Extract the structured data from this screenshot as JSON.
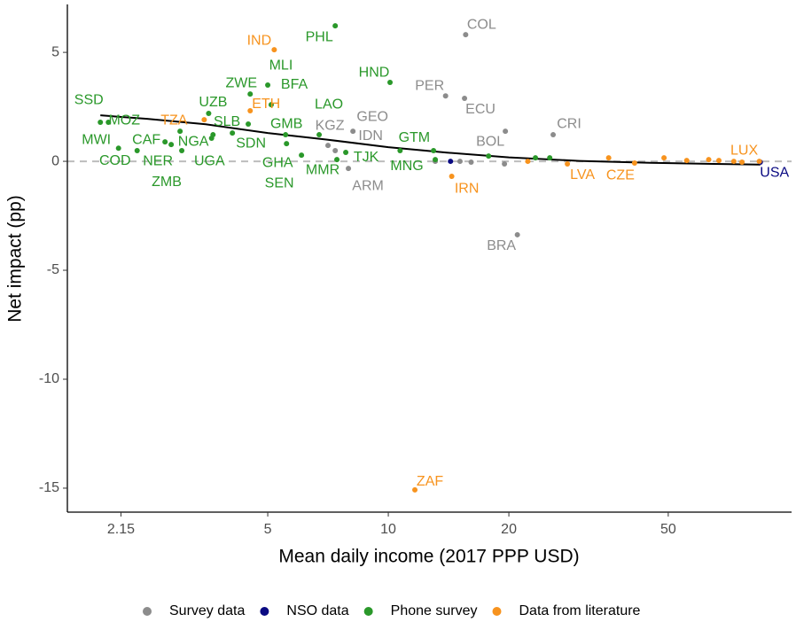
{
  "chart_data": {
    "type": "scatter",
    "x_label": "Mean daily income (2017 PPP USD)",
    "y_label": "Net impact (pp)",
    "xlim": [
      1.58,
      101.6
    ],
    "xticks": [
      2.15,
      5,
      10,
      20,
      50
    ],
    "x_log": true,
    "ylim": [
      -16.1,
      7.2
    ],
    "yticks": [
      -15,
      -10,
      -5,
      0,
      5
    ],
    "reference_line": 0,
    "legend": "bottom",
    "series": [
      {
        "name": "Survey data",
        "color": "#8c8c8c",
        "x": [
          15.6,
          13.9,
          15.5,
          8.16,
          7.07,
          7.37,
          19.6,
          25.8,
          7.95,
          21.0,
          13.1,
          16.1,
          19.5,
          15.1
        ],
        "values": [
          5.81,
          3.0,
          2.89,
          1.38,
          0.73,
          0.49,
          1.38,
          1.22,
          -0.33,
          -3.37,
          0,
          -0.04,
          -0.12,
          0
        ],
        "labels": [
          "COL",
          "PER",
          "ECU",
          "GEO",
          "KGZ",
          "IDN",
          "BOL",
          "CRI",
          "ARM",
          "BRA",
          null,
          null,
          null,
          null
        ]
      },
      {
        "name": "NSO data",
        "color": "#0a0a82",
        "x": [
          14.3,
          84.9
        ],
        "values": [
          0,
          -0.04
        ],
        "labels": [
          null,
          "USA"
        ]
      },
      {
        "name": "Phone survey",
        "color": "#2a982a",
        "x": [
          1.91,
          2.0,
          2.12,
          2.36,
          2.77,
          2.87,
          3.02,
          3.05,
          3.65,
          3.56,
          4.47,
          4.52,
          4.08,
          5.0,
          5.1,
          7.37,
          6.72,
          5.54,
          5.57,
          6.07,
          10.1,
          10.7,
          7.83,
          7.44,
          12.97,
          3.62,
          13.1,
          17.8,
          23.3,
          25.3
        ],
        "values": [
          1.79,
          1.79,
          0.6,
          0.49,
          0.89,
          0.77,
          1.38,
          0.49,
          1.22,
          2.2,
          1.71,
          3.09,
          1.3,
          3.5,
          2.6,
          6.22,
          1.22,
          1.22,
          0.81,
          0.28,
          3.62,
          0.49,
          0.41,
          0.08,
          0.49,
          1.06,
          0.08,
          0.24,
          0.16,
          0.16
        ],
        "labels": [
          "SSD",
          "MOZ",
          "MWI",
          "COD",
          "CAF",
          "NER",
          "NGA",
          "ZMB",
          "UGA",
          "UZB",
          "SLB",
          "ZWE",
          "SDN",
          "BFA",
          "MLI",
          "PHL",
          "LAO",
          "GMB",
          "GHA",
          "SEN",
          "HND",
          "GTM",
          "TJK",
          "MMR",
          "MNG",
          null,
          null,
          null,
          null,
          null
        ]
      },
      {
        "name": "Data from literature",
        "color": "#f7931e",
        "x": [
          5.19,
          4.52,
          3.47,
          14.4,
          11.65,
          28.0,
          41.2,
          84.4,
          22.3,
          35.5,
          48.8,
          55.6,
          63.1,
          66.9,
          72.9,
          76.4
        ],
        "values": [
          5.12,
          2.32,
          1.91,
          -0.69,
          -15.08,
          -0.12,
          -0.08,
          0,
          0,
          0.16,
          0.16,
          0.04,
          0.08,
          0.04,
          0,
          -0.04
        ],
        "labels": [
          "IND",
          "ETH",
          "TZA",
          "IRN",
          "ZAF",
          "LVA",
          "CZE",
          "LUX",
          null,
          null,
          null,
          null,
          null,
          null,
          null,
          null
        ]
      }
    ],
    "fit": {
      "color": "#000000",
      "x": [
        1.91,
        2.5,
        3.5,
        5,
        7,
        10,
        14,
        20,
        30,
        45,
        65,
        84.9
      ],
      "values": [
        2.11,
        1.95,
        1.7,
        1.3,
        1.0,
        0.65,
        0.4,
        0.18,
        0.02,
        -0.07,
        -0.12,
        -0.15
      ]
    }
  }
}
